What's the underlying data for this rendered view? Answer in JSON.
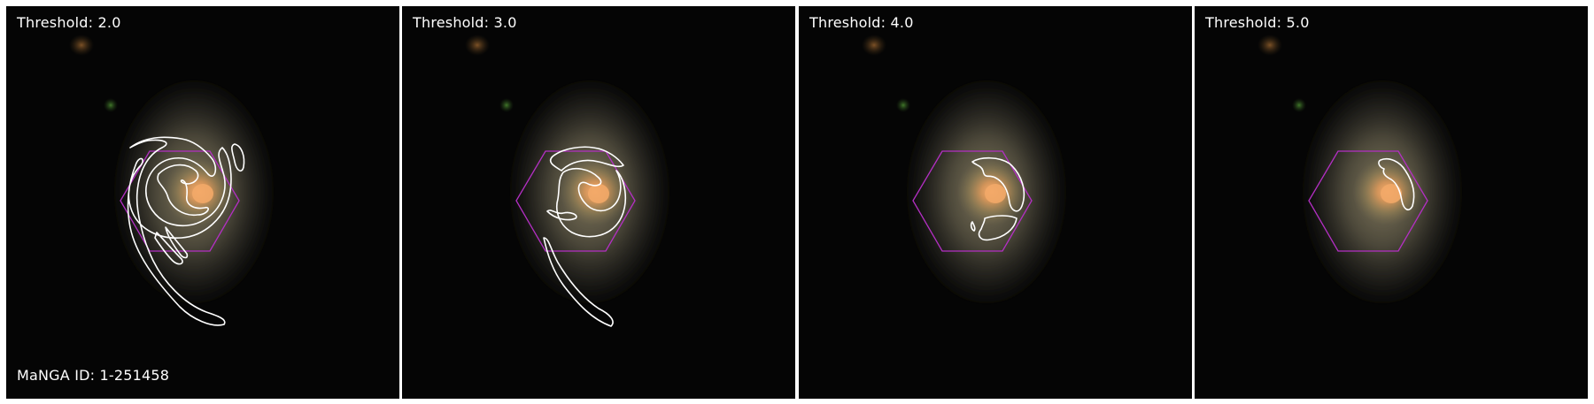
{
  "panels": [
    {
      "threshold_label": "Threshold: 2.0"
    },
    {
      "threshold_label": "Threshold: 3.0"
    },
    {
      "threshold_label": "Threshold: 4.0"
    },
    {
      "threshold_label": "Threshold: 5.0"
    }
  ],
  "manga_id_label": "MaNGA ID: 1-251458",
  "colors": {
    "background": "#050505",
    "contour": "#ffffff",
    "ifu_hexagon": "#b42fc4",
    "galaxy_core": "#f0a060"
  },
  "elements": {
    "contour": "white-outline",
    "footprint": "magenta-hexagon"
  }
}
